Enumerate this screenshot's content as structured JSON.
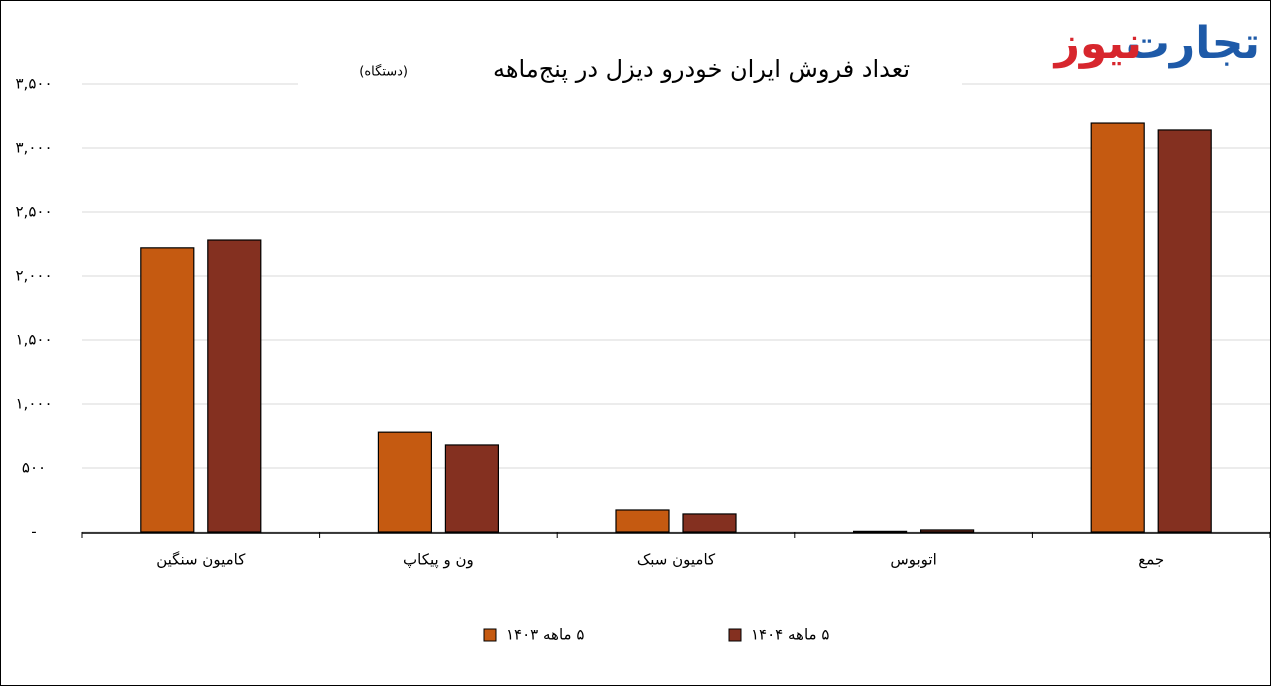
{
  "chart_data": {
    "type": "bar",
    "title": "تعداد فروش ایران خودرو دیزل در پنج‌ماهه",
    "subtitle": "(دستگاه)",
    "logo": [
      "تجارت",
      "نیوز"
    ],
    "categories": [
      "کامیون سنگین",
      "ون و پیکاپ",
      "کامیون سبک",
      "اتوبوس",
      "جمع"
    ],
    "series": [
      {
        "name": "۵ ماهه ۱۴۰۳",
        "color": "#c55a11",
        "values": [
          2220,
          780,
          172,
          5,
          3195
        ]
      },
      {
        "name": "۵ ماهه ۱۴۰۴",
        "color": "#843020",
        "values": [
          2281,
          680,
          141,
          16,
          3141
        ]
      }
    ],
    "ylim": [
      0,
      3500
    ],
    "yticks": [
      {
        "value": 0,
        "label": "-"
      },
      {
        "value": 500,
        "label": "۵۰۰"
      },
      {
        "value": 1000,
        "label": "۱,۰۰۰"
      },
      {
        "value": 1500,
        "label": "۱,۵۰۰"
      },
      {
        "value": 2000,
        "label": "۲,۰۰۰"
      },
      {
        "value": 2500,
        "label": "۲,۵۰۰"
      },
      {
        "value": 3000,
        "label": "۳,۰۰۰"
      },
      {
        "value": 3500,
        "label": "۳,۵۰۰"
      }
    ],
    "grid": true
  }
}
